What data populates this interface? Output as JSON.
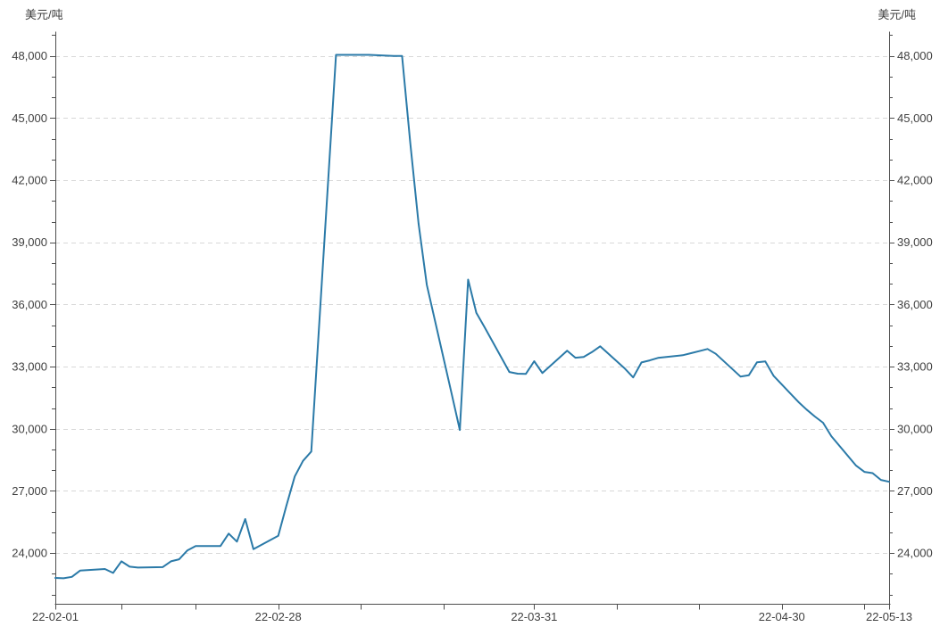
{
  "page": {
    "background": "#ffffff"
  },
  "axis_titles": {
    "left": "美元/吨",
    "right": "美元/吨"
  },
  "colors": {
    "line": "#2b7aa8",
    "axis": "#4d4d4d",
    "grid": "#d8d8d8",
    "label": "#404040",
    "background": "#ffffff"
  },
  "chart_data": {
    "type": "line",
    "title": "",
    "grid": "dashed-horizontal",
    "legend_position": "none",
    "y_axis": {
      "unit": "美元/吨",
      "min": 21550,
      "max": 49150,
      "minor_tick_step": 1000,
      "mirrored_right": true,
      "major_ticks": [
        {
          "value": 24000,
          "label": "24,000"
        },
        {
          "value": 27000,
          "label": "27,000"
        },
        {
          "value": 30000,
          "label": "30,000"
        },
        {
          "value": 33000,
          "label": "33,000"
        },
        {
          "value": 36000,
          "label": "36,000"
        },
        {
          "value": 39000,
          "label": "39,000"
        },
        {
          "value": 42000,
          "label": "42,000"
        },
        {
          "value": 45000,
          "label": "45,000"
        },
        {
          "value": 48000,
          "label": "48,000"
        }
      ]
    },
    "x_axis": {
      "start_date": "2022-02-01",
      "end_date": "2022-05-13",
      "ticks": [
        {
          "date": "2022-02-01",
          "label": "22-02-01"
        },
        {
          "date": "2022-02-09",
          "label": ""
        },
        {
          "date": "2022-02-18",
          "label": ""
        },
        {
          "date": "2022-02-28",
          "label": "22-02-28"
        },
        {
          "date": "2022-03-10",
          "label": ""
        },
        {
          "date": "2022-03-20",
          "label": ""
        },
        {
          "date": "2022-03-31",
          "label": "22-03-31"
        },
        {
          "date": "2022-04-10",
          "label": ""
        },
        {
          "date": "2022-04-20",
          "label": ""
        },
        {
          "date": "2022-04-30",
          "label": "22-04-30"
        },
        {
          "date": "2022-05-10",
          "label": ""
        },
        {
          "date": "2022-05-13",
          "label": "22-05-13"
        }
      ]
    },
    "series": [
      {
        "color": "#2b7aa8",
        "points": [
          [
            "2022-02-01",
            22800
          ],
          [
            "2022-02-02",
            22780
          ],
          [
            "2022-02-03",
            22850
          ],
          [
            "2022-02-04",
            23150
          ],
          [
            "2022-02-07",
            23230
          ],
          [
            "2022-02-08",
            23040
          ],
          [
            "2022-02-09",
            23600
          ],
          [
            "2022-02-10",
            23340
          ],
          [
            "2022-02-11",
            23300
          ],
          [
            "2022-02-14",
            23320
          ],
          [
            "2022-02-15",
            23600
          ],
          [
            "2022-02-16",
            23700
          ],
          [
            "2022-02-17",
            24130
          ],
          [
            "2022-02-18",
            24340
          ],
          [
            "2022-02-21",
            24340
          ],
          [
            "2022-02-22",
            24940
          ],
          [
            "2022-02-23",
            24550
          ],
          [
            "2022-02-24",
            25640
          ],
          [
            "2022-02-25",
            24190
          ],
          [
            "2022-02-28",
            24830
          ],
          [
            "2022-03-01",
            26300
          ],
          [
            "2022-03-02",
            27700
          ],
          [
            "2022-03-03",
            28450
          ],
          [
            "2022-03-04",
            28900
          ],
          [
            "2022-03-07",
            48050
          ],
          [
            "2022-03-08",
            48050
          ],
          [
            "2022-03-09",
            48050
          ],
          [
            "2022-03-10",
            48050
          ],
          [
            "2022-03-11",
            48050
          ],
          [
            "2022-03-14",
            48000
          ],
          [
            "2022-03-15",
            48000
          ],
          [
            "2022-03-16",
            43800
          ],
          [
            "2022-03-17",
            39900
          ],
          [
            "2022-03-18",
            36950
          ],
          [
            "2022-03-21",
            31700
          ],
          [
            "2022-03-22",
            29940
          ],
          [
            "2022-03-23",
            37200
          ],
          [
            "2022-03-24",
            35600
          ],
          [
            "2022-03-25",
            34900
          ],
          [
            "2022-03-28",
            32740
          ],
          [
            "2022-03-29",
            32660
          ],
          [
            "2022-03-30",
            32650
          ],
          [
            "2022-03-31",
            33260
          ],
          [
            "2022-04-01",
            32690
          ],
          [
            "2022-04-04",
            33770
          ],
          [
            "2022-04-05",
            33430
          ],
          [
            "2022-04-06",
            33470
          ],
          [
            "2022-04-07",
            33700
          ],
          [
            "2022-04-08",
            33980
          ],
          [
            "2022-04-11",
            32900
          ],
          [
            "2022-04-12",
            32480
          ],
          [
            "2022-04-13",
            33200
          ],
          [
            "2022-04-14",
            33300
          ],
          [
            "2022-04-15",
            33420
          ],
          [
            "2022-04-18",
            33550
          ],
          [
            "2022-04-19",
            33650
          ],
          [
            "2022-04-20",
            33750
          ],
          [
            "2022-04-21",
            33850
          ],
          [
            "2022-04-22",
            33620
          ],
          [
            "2022-04-25",
            32520
          ],
          [
            "2022-04-26",
            32580
          ],
          [
            "2022-04-27",
            33210
          ],
          [
            "2022-04-28",
            33250
          ],
          [
            "2022-04-29",
            32560
          ],
          [
            "2022-05-02",
            31300
          ],
          [
            "2022-05-03",
            30930
          ],
          [
            "2022-05-04",
            30590
          ],
          [
            "2022-05-05",
            30290
          ],
          [
            "2022-05-06",
            29640
          ],
          [
            "2022-05-09",
            28220
          ],
          [
            "2022-05-10",
            27920
          ],
          [
            "2022-05-11",
            27860
          ],
          [
            "2022-05-12",
            27530
          ],
          [
            "2022-05-13",
            27440
          ]
        ]
      }
    ]
  }
}
